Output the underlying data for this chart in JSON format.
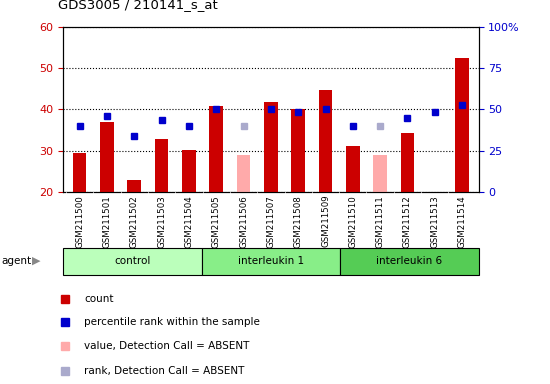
{
  "title": "GDS3005 / 210141_s_at",
  "samples": [
    "GSM211500",
    "GSM211501",
    "GSM211502",
    "GSM211503",
    "GSM211504",
    "GSM211505",
    "GSM211506",
    "GSM211507",
    "GSM211508",
    "GSM211509",
    "GSM211510",
    "GSM211511",
    "GSM211512",
    "GSM211513",
    "GSM211514"
  ],
  "red_values": [
    29.5,
    37.0,
    23.0,
    32.8,
    30.2,
    40.8,
    null,
    41.8,
    40.2,
    44.8,
    31.2,
    null,
    34.2,
    null,
    52.5
  ],
  "pink_values": [
    null,
    null,
    null,
    null,
    null,
    null,
    29.0,
    null,
    null,
    null,
    null,
    29.0,
    null,
    null,
    null
  ],
  "blue_values": [
    36,
    38.5,
    33.5,
    37.5,
    36,
    40,
    null,
    40,
    39.5,
    40,
    36,
    null,
    38,
    39.5,
    41
  ],
  "lavender_values": [
    null,
    null,
    null,
    null,
    null,
    null,
    36,
    null,
    null,
    null,
    null,
    36,
    null,
    null,
    null
  ],
  "groups": [
    {
      "label": "control",
      "start": 0,
      "end": 5,
      "color": "#bbffbb"
    },
    {
      "label": "interleukin 1",
      "start": 5,
      "end": 10,
      "color": "#88ee88"
    },
    {
      "label": "interleukin 6",
      "start": 10,
      "end": 15,
      "color": "#55cc55"
    }
  ],
  "ylim_left": [
    20,
    60
  ],
  "ylim_right": [
    0,
    100
  ],
  "yticks_left": [
    20,
    30,
    40,
    50,
    60
  ],
  "yticks_right": [
    0,
    25,
    50,
    75,
    100
  ],
  "plot_bg": "#ffffff",
  "red_color": "#cc0000",
  "pink_color": "#ffaaaa",
  "blue_color": "#0000cc",
  "lavender_color": "#aaaacc",
  "gray_bg": "#d8d8d8"
}
